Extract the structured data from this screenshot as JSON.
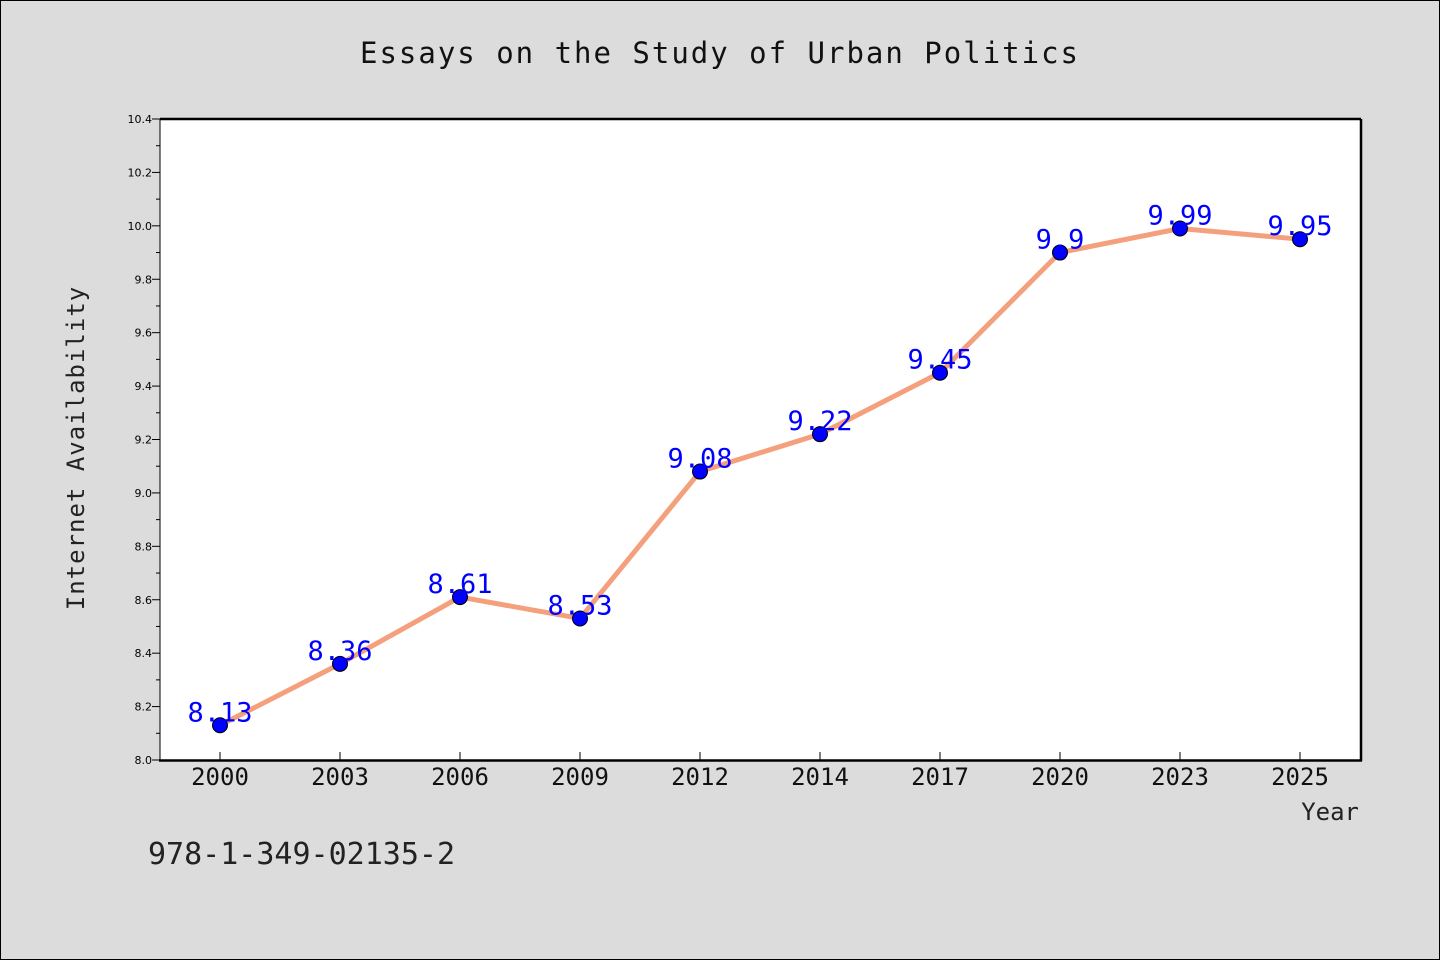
{
  "chart_data": {
    "type": "line",
    "title": "Essays on the Study of Urban Politics",
    "xlabel": "Year",
    "ylabel": "Internet Availability",
    "categories": [
      "2000",
      "2003",
      "2006",
      "2009",
      "2012",
      "2014",
      "2017",
      "2020",
      "2023",
      "2025"
    ],
    "series": [
      {
        "values": [
          8.13,
          8.36,
          8.61,
          8.53,
          9.08,
          9.22,
          9.45,
          9.9,
          9.99,
          9.95
        ],
        "labels": [
          "8.13",
          "8.36",
          "8.61",
          "8.53",
          "9.08",
          "9.22",
          "9.45",
          "9.9",
          "9.99",
          "9.95"
        ]
      }
    ],
    "ylim": [
      8.0,
      10.4
    ],
    "yticks": [
      "8.0",
      "8.2",
      "8.4",
      "8.6",
      "8.8",
      "9.0",
      "9.2",
      "9.4",
      "9.6",
      "9.8",
      "10.0",
      "10.2",
      "10.4"
    ],
    "grid": false,
    "legend": "none",
    "line_color": "#f4a07c",
    "marker_color": "#0000ff",
    "label_color": "#0000ff",
    "background_color": "#dcdcdc",
    "plot_background": "#ffffff"
  },
  "footer": {
    "isbn": "978-1-349-02135-2"
  }
}
